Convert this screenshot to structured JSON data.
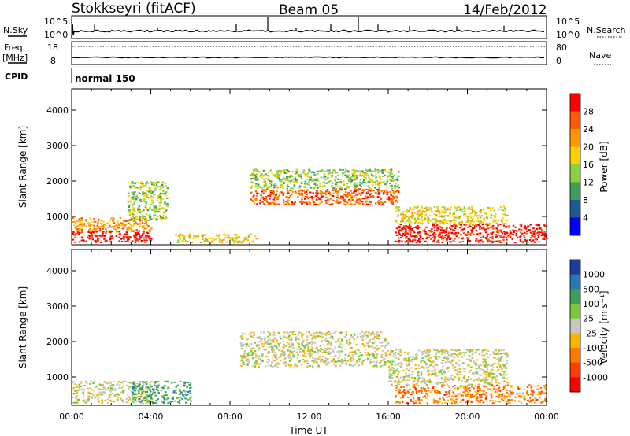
{
  "header": {
    "site": "Stokkseyri (fitACF)",
    "beam": "Beam 05",
    "date": "14/Feb/2012"
  },
  "status": {
    "nsky_label": "N.Sky",
    "nsky_ticks": [
      "10^5",
      "10^0"
    ],
    "nsearch_label": "N.Search",
    "nsearch_ticks": [
      "10^5",
      "10^0"
    ],
    "freq_label": "Freq.",
    "freq_unit": "[MHz]",
    "freq_ticks": [
      "18",
      "8"
    ],
    "nave_label": "Nave",
    "nave_ticks": [
      "80",
      "0"
    ],
    "cpid_label": "CPID",
    "cpid_value": "normal 150"
  },
  "chart_data": [
    {
      "type": "heatmap",
      "name": "power",
      "ylabel": "Slant Range [km]",
      "ylim": [
        200,
        4600
      ],
      "yticks": [
        1000,
        2000,
        3000,
        4000
      ],
      "xlim": [
        0,
        24
      ],
      "colorbar": {
        "label": "Power [dB]",
        "ticks": [
          "28",
          "24",
          "20",
          "16",
          "12",
          "8",
          "4"
        ],
        "colors": [
          "#ff0000",
          "#ff5a00",
          "#ff9600",
          "#ffd000",
          "#8cd23c",
          "#3c9e5a",
          "#1e5a96",
          "#0000ff"
        ]
      },
      "regions": [
        {
          "t": [
            0.0,
            4.0
          ],
          "r": [
            280,
            620
          ],
          "level": 0
        },
        {
          "t": [
            0.0,
            4.0
          ],
          "r": [
            620,
            980
          ],
          "level": 2
        },
        {
          "t": [
            2.8,
            4.8
          ],
          "r": [
            900,
            2000
          ],
          "level": 4
        },
        {
          "t": [
            5.2,
            9.3
          ],
          "r": [
            280,
            520
          ],
          "level": 3
        },
        {
          "t": [
            9.0,
            16.5
          ],
          "r": [
            1350,
            1800
          ],
          "level": 1
        },
        {
          "t": [
            9.0,
            16.5
          ],
          "r": [
            1800,
            2350
          ],
          "level": 4
        },
        {
          "t": [
            16.3,
            24.0
          ],
          "r": [
            280,
            800
          ],
          "level": 0
        },
        {
          "t": [
            16.3,
            22.0
          ],
          "r": [
            800,
            1300
          ],
          "level": 3
        }
      ]
    },
    {
      "type": "heatmap",
      "name": "velocity",
      "ylabel": "Slant Range [km]",
      "ylim": [
        200,
        4600
      ],
      "yticks": [
        1000,
        2000,
        3000,
        4000
      ],
      "xlim": [
        0,
        24
      ],
      "xlabel": "Time UT",
      "xticks": [
        "00:00",
        "04:00",
        "08:00",
        "12:00",
        "16:00",
        "20:00",
        "00:00"
      ],
      "colorbar": {
        "label": "Velocity [m s⁻¹]",
        "ticks": [
          "1000",
          "500",
          "100",
          "25",
          "-25",
          "-100",
          "-500",
          "-1000"
        ],
        "colors": [
          "#1e3ca0",
          "#2878b4",
          "#3c9e5a",
          "#78c83c",
          "#c8c8c0",
          "#ffb400",
          "#ff7800",
          "#ff3c00",
          "#ff0000"
        ]
      },
      "regions": [
        {
          "t": [
            0.0,
            4.0
          ],
          "r": [
            280,
            900
          ],
          "level": 4
        },
        {
          "t": [
            3.0,
            6.0
          ],
          "r": [
            280,
            900
          ],
          "level": 2
        },
        {
          "t": [
            8.5,
            16.0
          ],
          "r": [
            1300,
            2300
          ],
          "level": 4
        },
        {
          "t": [
            16.3,
            24.0
          ],
          "r": [
            280,
            800
          ],
          "level": 6
        },
        {
          "t": [
            16.0,
            22.0
          ],
          "r": [
            800,
            1800
          ],
          "level": 4
        }
      ]
    }
  ]
}
